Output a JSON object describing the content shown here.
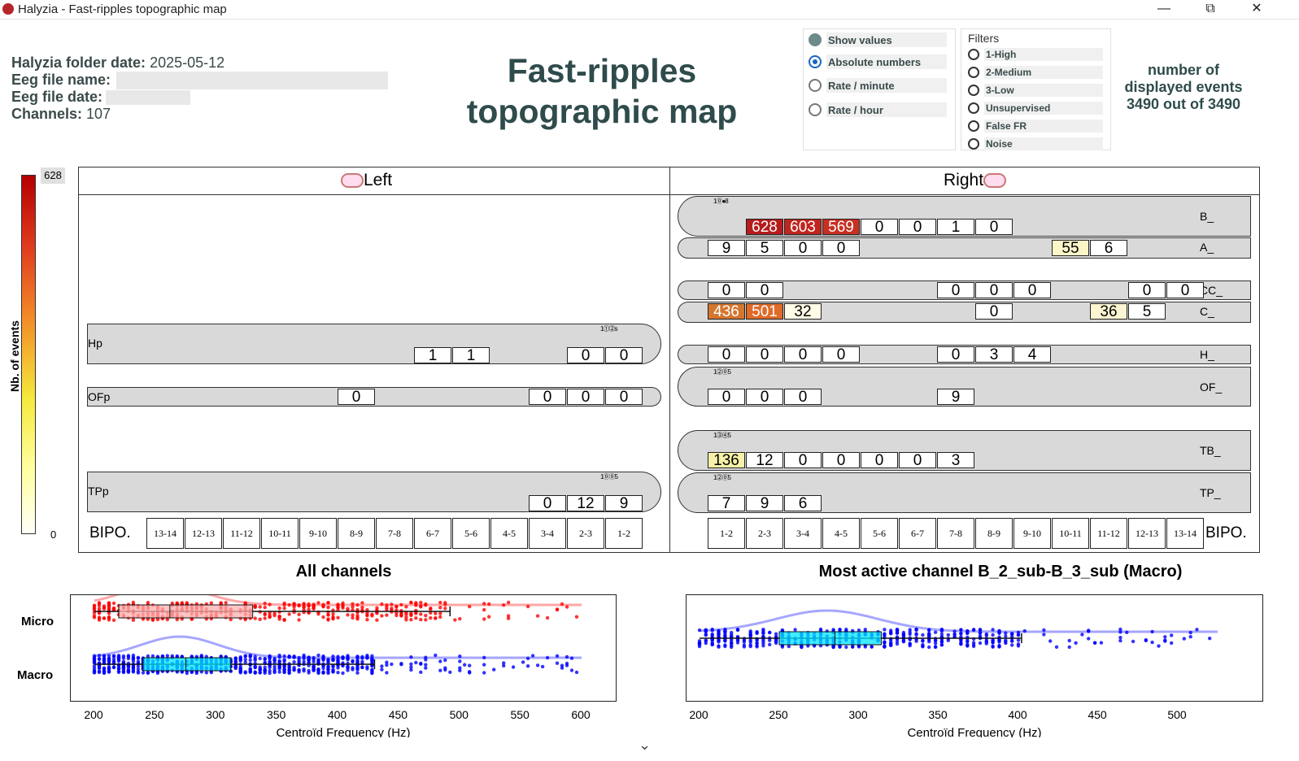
{
  "window": {
    "title": "Halyzia - Fast-ripples topographic map"
  },
  "info": {
    "folder_date_label": "Halyzia folder date:",
    "folder_date_value": "2025-05-12",
    "eeg_name_label": "Eeg file name:",
    "eeg_date_label": "Eeg file date:",
    "channels_label": "Channels:",
    "channels_value": "107"
  },
  "main_title": {
    "line1": "Fast-ripples",
    "line2": "topographic map"
  },
  "display_options": [
    {
      "label": "Show values",
      "state": "grey"
    },
    {
      "label": "Absolute numbers",
      "state": "selected"
    },
    {
      "label": "Rate / minute",
      "state": "off"
    },
    {
      "label": "Rate / hour",
      "state": "off"
    }
  ],
  "filters": {
    "title": "Filters",
    "items": [
      "1-High",
      "2-Medium",
      "3-Low",
      "Unsupervised",
      "False FR",
      "Noise"
    ]
  },
  "events": {
    "line1": "number of",
    "line2": "displayed events",
    "line3": "3490 out of 3490"
  },
  "colorbar": {
    "max": "628",
    "min": "0",
    "label": "Nb. of events"
  },
  "map": {
    "left_title": "Left",
    "right_title": "Right",
    "bipo_label": "BIPO.",
    "left_bipo": [
      "13-14",
      "12-13",
      "11-12",
      "10-11",
      "9-10",
      "8-9",
      "7-8",
      "6-7",
      "5-6",
      "4-5",
      "3-4",
      "2-3",
      "1-2"
    ],
    "right_bipo": [
      "1-2",
      "2-3",
      "3-4",
      "4-5",
      "5-6",
      "6-7",
      "7-8",
      "8-9",
      "9-10",
      "10-11",
      "11-12",
      "12-13",
      "13-14"
    ],
    "left_channels": [
      {
        "name": "Hp",
        "cells": [
          "",
          "",
          "",
          "",
          "",
          "",
          "",
          "1",
          "1",
          "",
          "",
          "0",
          "0"
        ]
      },
      {
        "name": "OFp",
        "cells": [
          "",
          "",
          "",
          "",
          "",
          "0",
          "",
          "",
          "",
          "",
          "0",
          "0",
          "0"
        ]
      },
      {
        "name": "TPp",
        "cells": [
          "",
          "",
          "",
          "",
          "",
          "",
          "",
          "",
          "",
          "",
          "0",
          "12",
          "9"
        ]
      }
    ],
    "right_channels": [
      {
        "name": "B_",
        "cells": [
          "",
          "628",
          "603",
          "569",
          "0",
          "0",
          "1",
          "0",
          "",
          "",
          "",
          "",
          ""
        ]
      },
      {
        "name": "A_",
        "cells": [
          "9",
          "5",
          "0",
          "0",
          "",
          "",
          "",
          "",
          "",
          "55",
          "6",
          "",
          ""
        ]
      },
      {
        "name": "CC_",
        "cells": [
          "0",
          "0",
          "",
          "",
          "",
          "",
          "0",
          "0",
          "0",
          "",
          "",
          "0",
          "0"
        ]
      },
      {
        "name": "C_",
        "cells": [
          "436",
          "501",
          "32",
          "",
          "",
          "",
          "",
          "0",
          "",
          "",
          "36",
          "5",
          ""
        ]
      },
      {
        "name": "H_",
        "cells": [
          "0",
          "0",
          "0",
          "0",
          "",
          "",
          "0",
          "3",
          "4",
          "",
          "",
          "",
          ""
        ]
      },
      {
        "name": "OF_",
        "cells": [
          "0",
          "0",
          "0",
          "",
          "",
          "",
          "9",
          "",
          "",
          "",
          "",
          "",
          ""
        ]
      },
      {
        "name": "TB_",
        "cells": [
          "136",
          "12",
          "0",
          "0",
          "0",
          "0",
          "3",
          "",
          "",
          "",
          "",
          "",
          ""
        ]
      },
      {
        "name": "TP_",
        "cells": [
          "7",
          "9",
          "6",
          "",
          "",
          "",
          "",
          "",
          "",
          "",
          "",
          "",
          ""
        ]
      }
    ],
    "cell_colors": {
      "628": "#b71c1c",
      "603": "#c0261e",
      "569": "#c83022",
      "436": "#d5762e",
      "501": "#e06a28",
      "136": "#f7f0a8",
      "55": "#fbf5c8",
      "36": "#fbf5d2",
      "32": "#fffbe6"
    }
  },
  "plots": {
    "left_title": "All channels",
    "right_title": "Most active channel B_2_sub-B_3_sub (Macro)",
    "y_labels": [
      "Micro",
      "Macro"
    ],
    "left_x_ticks": [
      "200",
      "250",
      "300",
      "350",
      "400",
      "450",
      "500",
      "550",
      "600"
    ],
    "right_x_ticks": [
      "200",
      "250",
      "300",
      "350",
      "400",
      "450",
      "500"
    ],
    "x_label": "Centroïd Frequency (Hz)"
  },
  "chart_data": [
    {
      "type": "scatter",
      "title": "All channels",
      "xlabel": "Centroïd Frequency (Hz)",
      "xlim": [
        190,
        610
      ],
      "categories": [
        "Micro",
        "Macro"
      ],
      "series": [
        {
          "name": "Micro",
          "color": "#ff0000",
          "box": {
            "q1": 220,
            "median": 262,
            "q3": 330,
            "whisker_low": 200,
            "whisker_high": 492
          }
        },
        {
          "name": "Macro",
          "color": "#0000ff",
          "box": {
            "q1": 240,
            "median": 275,
            "q3": 312,
            "whisker_low": 200,
            "whisker_high": 430
          }
        }
      ]
    },
    {
      "type": "scatter",
      "title": "Most active channel B_2_sub-B_3_sub (Macro)",
      "xlabel": "Centroïd Frequency (Hz)",
      "xlim": [
        192,
        530
      ],
      "series": [
        {
          "name": "Macro",
          "color": "#0000ff",
          "box": {
            "q1": 250,
            "median": 285,
            "q3": 314,
            "whisker_low": 200,
            "whisker_high": 402
          }
        }
      ]
    }
  ]
}
